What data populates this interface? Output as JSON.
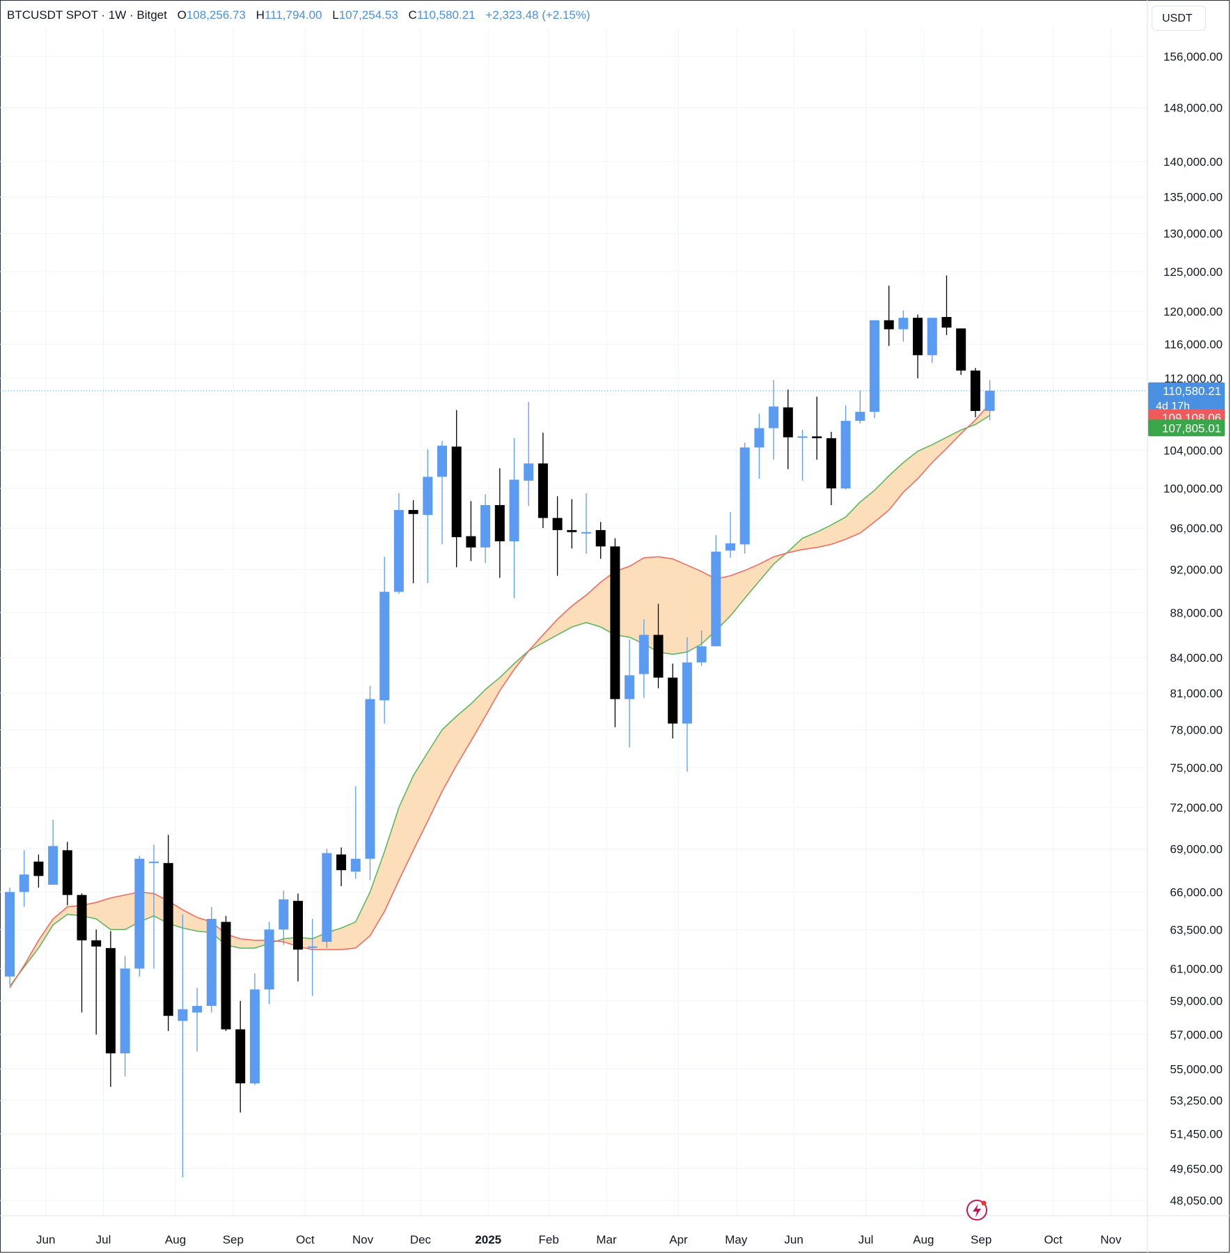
{
  "header": {
    "symbol": "BTCUSDT SPOT · 1W · Bitget",
    "open_label": "O",
    "open": "108,256.73",
    "high_label": "H",
    "high": "111,794.00",
    "low_label": "L",
    "low": "107,254.53",
    "close_label": "C",
    "close": "110,580.21",
    "change": "+2,323.48 (+2.15%)"
  },
  "currency_button": "USDT",
  "colors": {
    "up": "#5b9cf2",
    "down": "#000000",
    "ema_fast": "#5fb65f",
    "ema_slow": "#f26b63",
    "ribbon_fill": "#fcd9ae",
    "price_tag": "#4a90e2",
    "tag_red": "#f05a5a",
    "tag_green": "#3aa64a"
  },
  "icons": {
    "bolt": "lightning-bolt-icon"
  },
  "chart_data": {
    "type": "candlestick",
    "title": "BTCUSDT SPOT · 1W · Bitget",
    "y_scale": "log",
    "ylim": [
      46000,
      165000
    ],
    "y_ticks": [
      {
        "v": 156000,
        "label": "156,000.00"
      },
      {
        "v": 148000,
        "label": "148,000.00"
      },
      {
        "v": 140000,
        "label": "140,000.00"
      },
      {
        "v": 135000,
        "label": "135,000.00"
      },
      {
        "v": 130000,
        "label": "130,000.00"
      },
      {
        "v": 125000,
        "label": "125,000.00"
      },
      {
        "v": 120000,
        "label": "120,000.00"
      },
      {
        "v": 116000,
        "label": "116,000.00"
      },
      {
        "v": 112000,
        "label": "112,000.00"
      },
      {
        "v": 104000,
        "label": "104,000.00"
      },
      {
        "v": 100000,
        "label": "100,000.00"
      },
      {
        "v": 96000,
        "label": "96,000.00"
      },
      {
        "v": 92000,
        "label": "92,000.00"
      },
      {
        "v": 88000,
        "label": "88,000.00"
      },
      {
        "v": 84000,
        "label": "84,000.00"
      },
      {
        "v": 81000,
        "label": "81,000.00"
      },
      {
        "v": 78000,
        "label": "78,000.00"
      },
      {
        "v": 75000,
        "label": "75,000.00"
      },
      {
        "v": 72000,
        "label": "72,000.00"
      },
      {
        "v": 69000,
        "label": "69,000.00"
      },
      {
        "v": 66000,
        "label": "66,000.00"
      },
      {
        "v": 63500,
        "label": "63,500.00"
      },
      {
        "v": 61000,
        "label": "61,000.00"
      },
      {
        "v": 59000,
        "label": "59,000.00"
      },
      {
        "v": 57000,
        "label": "57,000.00"
      },
      {
        "v": 55000,
        "label": "55,000.00"
      },
      {
        "v": 53250,
        "label": "53,250.00"
      },
      {
        "v": 51450,
        "label": "51,450.00"
      },
      {
        "v": 49650,
        "label": "49,650.00"
      },
      {
        "v": 48050,
        "label": "48,050.00"
      }
    ],
    "x_ticks": [
      {
        "i": 2.5,
        "label": "Jun"
      },
      {
        "i": 6.5,
        "label": "Jul"
      },
      {
        "i": 11.5,
        "label": "Aug"
      },
      {
        "i": 15.5,
        "label": "Sep"
      },
      {
        "i": 20.5,
        "label": "Oct"
      },
      {
        "i": 24.5,
        "label": "Nov"
      },
      {
        "i": 28.5,
        "label": "Dec"
      },
      {
        "i": 33.2,
        "label": "2025"
      },
      {
        "i": 37.4,
        "label": "Feb"
      },
      {
        "i": 41.4,
        "label": "Mar"
      },
      {
        "i": 46.4,
        "label": "Apr"
      },
      {
        "i": 50.4,
        "label": "May"
      },
      {
        "i": 54.4,
        "label": "Jun"
      },
      {
        "i": 59.4,
        "label": "Jul"
      },
      {
        "i": 63.4,
        "label": "Aug"
      },
      {
        "i": 67.4,
        "label": "Sep"
      },
      {
        "i": 72.4,
        "label": "Oct"
      },
      {
        "i": 76.4,
        "label": "Nov"
      }
    ],
    "candles": [
      [
        60500,
        66000,
        60000,
        66300
      ],
      [
        66000,
        67200,
        65000,
        68900
      ],
      [
        68100,
        67100,
        66300,
        68600
      ],
      [
        66500,
        69200,
        66500,
        71100
      ],
      [
        68900,
        65800,
        65100,
        69500
      ],
      [
        65800,
        62800,
        58300,
        65900
      ],
      [
        62800,
        62400,
        57000,
        63500
      ],
      [
        62300,
        55900,
        54000,
        63400
      ],
      [
        55900,
        61000,
        54600,
        61800
      ],
      [
        61000,
        68300,
        60500,
        68500
      ],
      [
        68000,
        68100,
        61000,
        69300
      ],
      [
        68000,
        58100,
        57200,
        70000
      ],
      [
        57800,
        58500,
        49200,
        64500
      ],
      [
        58300,
        58700,
        56000,
        59800
      ],
      [
        58700,
        64200,
        58300,
        65000
      ],
      [
        64000,
        57300,
        57200,
        64400
      ],
      [
        57300,
        54200,
        52600,
        59000
      ],
      [
        54200,
        59700,
        54100,
        60700
      ],
      [
        59700,
        63500,
        58800,
        64000
      ],
      [
        63500,
        65500,
        62500,
        66100
      ],
      [
        65400,
        62200,
        60200,
        65900
      ],
      [
        62400,
        62400,
        59300,
        64200
      ],
      [
        62700,
        68700,
        62300,
        69000
      ],
      [
        68600,
        67500,
        66400,
        69100
      ],
      [
        67400,
        68300,
        66900,
        73600
      ],
      [
        68300,
        80500,
        66800,
        81600
      ],
      [
        80400,
        89900,
        78500,
        93200
      ],
      [
        89900,
        97800,
        89700,
        99500
      ],
      [
        97800,
        97400,
        90700,
        98800
      ],
      [
        97300,
        101200,
        90700,
        104100
      ],
      [
        101200,
        104500,
        94400,
        105000
      ],
      [
        104400,
        95100,
        92200,
        108400
      ],
      [
        95200,
        94100,
        92800,
        98700
      ],
      [
        94100,
        98300,
        92600,
        99400
      ],
      [
        98300,
        94700,
        91200,
        102100
      ],
      [
        94700,
        100900,
        89300,
        105300
      ],
      [
        100800,
        102600,
        98200,
        109300
      ],
      [
        102600,
        97000,
        96000,
        105900
      ],
      [
        97000,
        95800,
        91400,
        99200
      ],
      [
        95800,
        95600,
        94000,
        98900
      ],
      [
        95500,
        95600,
        93500,
        99500
      ],
      [
        95800,
        94200,
        93000,
        96600
      ],
      [
        94200,
        80500,
        78200,
        95000
      ],
      [
        80500,
        82500,
        76600,
        85600
      ],
      [
        82600,
        86000,
        80600,
        87400
      ],
      [
        86000,
        82300,
        81400,
        88800
      ],
      [
        82300,
        78500,
        77300,
        83500
      ],
      [
        78500,
        83600,
        74700,
        85800
      ],
      [
        83600,
        85000,
        83300,
        86400
      ],
      [
        85000,
        93700,
        85000,
        95300
      ],
      [
        93800,
        94500,
        93100,
        97600
      ],
      [
        94400,
        104300,
        93500,
        104800
      ],
      [
        104300,
        106400,
        101000,
        108000
      ],
      [
        106400,
        108800,
        103000,
        111800
      ],
      [
        108700,
        105400,
        102000,
        110700
      ],
      [
        105500,
        105500,
        100800,
        106200
      ],
      [
        105500,
        105300,
        103000,
        109900
      ],
      [
        105300,
        100000,
        98300,
        106000
      ],
      [
        100000,
        107200,
        99900,
        108900
      ],
      [
        107200,
        108200,
        106900,
        110600
      ],
      [
        108200,
        118900,
        107500,
        118900
      ],
      [
        118900,
        117800,
        115800,
        123200
      ],
      [
        117800,
        119200,
        116300,
        120100
      ],
      [
        119200,
        114700,
        112000,
        119600
      ],
      [
        114700,
        119200,
        113800,
        119200
      ],
      [
        119300,
        118000,
        117100,
        124500
      ],
      [
        117900,
        112900,
        112400,
        117900
      ],
      [
        112900,
        108300,
        107600,
        113200
      ],
      [
        108300,
        110580.21,
        107254.53,
        111794.0
      ]
    ],
    "series": [
      {
        "name": "",
        "color": "#5fb65f",
        "values": [
          59900,
          61100,
          62300,
          63800,
          64500,
          64400,
          64200,
          63500,
          63500,
          64000,
          64400,
          63900,
          63600,
          63400,
          63300,
          62500,
          62300,
          62300,
          62600,
          62900,
          63000,
          62900,
          63300,
          63600,
          64000,
          66000,
          68800,
          72000,
          74400,
          76200,
          78000,
          79100,
          80100,
          81300,
          82300,
          83500,
          84600,
          85300,
          86000,
          86700,
          87100,
          86700,
          86000,
          85800,
          85200,
          84500,
          84300,
          84500,
          85200,
          86400,
          87700,
          89300,
          90900,
          92500,
          93700,
          95000,
          95600,
          96300,
          97100,
          98600,
          99800,
          101300,
          102700,
          103900,
          104600,
          105400,
          106200,
          106800,
          107805.01
        ]
      },
      {
        "name": "",
        "color": "#f26b63",
        "values": [
          59800,
          61200,
          62800,
          64200,
          65000,
          65100,
          65300,
          65600,
          65800,
          66000,
          65900,
          65400,
          64800,
          64300,
          64000,
          63200,
          62900,
          62800,
          62800,
          62700,
          62400,
          62200,
          62200,
          62200,
          62300,
          63100,
          64700,
          66800,
          68900,
          71000,
          73200,
          75200,
          77100,
          79100,
          81200,
          83000,
          84600,
          86000,
          87400,
          88600,
          89600,
          90800,
          91800,
          92300,
          93100,
          93200,
          93000,
          92400,
          91800,
          91100,
          91400,
          91900,
          92500,
          93200,
          93600,
          93900,
          94100,
          94400,
          94900,
          95500,
          96600,
          97800,
          99600,
          101000,
          102700,
          104200,
          105800,
          107300,
          109108.06
        ]
      }
    ],
    "current_price": {
      "value": 110580.21,
      "label": "110,580.21",
      "countdown": "4d 17h"
    },
    "ema_tags": [
      {
        "label": "109,108.06",
        "value": 109108.06,
        "color": "#f05a5a"
      },
      {
        "label": "107,805.01",
        "value": 107805.01,
        "color": "#3aa64a"
      }
    ],
    "grid": true,
    "legend": "top-left"
  }
}
